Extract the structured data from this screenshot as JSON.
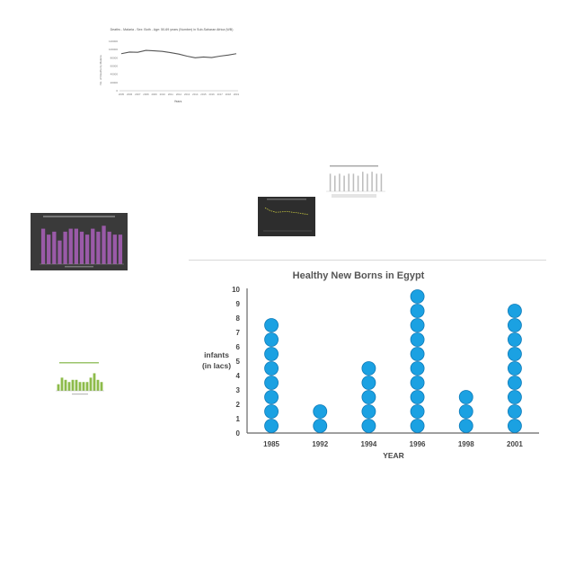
{
  "thumbnails": {
    "line_chart": {
      "title": "Deaths - Malaria - Sex: Both - Age: 50-69 years (Number) in Sub-Saharan Africa (WB)",
      "ylabel": "No. of Deaths by Malaria",
      "xlabel": "Years",
      "y_ticks": [
        "0",
        "20000",
        "40000",
        "60000",
        "80000",
        "100000",
        "120000"
      ],
      "x_ticks": [
        "2005",
        "2006",
        "2007",
        "2008",
        "2009",
        "2010",
        "2011",
        "2012",
        "2013",
        "2014",
        "2015",
        "2016",
        "2017",
        "2018",
        "2019"
      ],
      "values": [
        90000,
        94000,
        93500,
        98000,
        97000,
        95500,
        92500,
        89000,
        84000,
        80000,
        82000,
        80500,
        84000,
        86500,
        90000
      ],
      "ylim": [
        0,
        120000
      ]
    },
    "purple_bars": {
      "values": [
        12,
        10,
        11,
        8,
        11,
        12,
        12,
        11,
        10,
        12,
        11,
        13,
        11,
        10,
        10
      ]
    },
    "dark_line": {
      "values": [
        8,
        7,
        6.5,
        6.6,
        6.8,
        6.5,
        6.3,
        6.0,
        5.7
      ]
    },
    "gray_bars": {
      "values": [
        9,
        8,
        9,
        8,
        9,
        9,
        8,
        10,
        9,
        10,
        9,
        9
      ]
    },
    "green_bars": {
      "values": [
        3,
        6,
        5,
        4,
        5,
        5,
        4,
        4,
        4,
        6,
        8,
        5,
        4
      ]
    }
  },
  "chart_data": {
    "type": "pictograph",
    "title": "Healthy New Borns in Egypt",
    "xlabel": "YEAR",
    "ylabel": [
      "infants",
      "(in lacs)"
    ],
    "categories": [
      "1985",
      "1992",
      "1994",
      "1996",
      "1998",
      "2001"
    ],
    "values": [
      8,
      2,
      5,
      10,
      3,
      9
    ],
    "y_ticks": [
      "0",
      "1",
      "2",
      "3",
      "4",
      "5",
      "6",
      "7",
      "8",
      "9",
      "10"
    ],
    "ylim": [
      0,
      10
    ],
    "colors": {
      "dot": "#1ba1e2",
      "dot_stroke": "#0d7ab8",
      "axis": "#555555"
    }
  }
}
